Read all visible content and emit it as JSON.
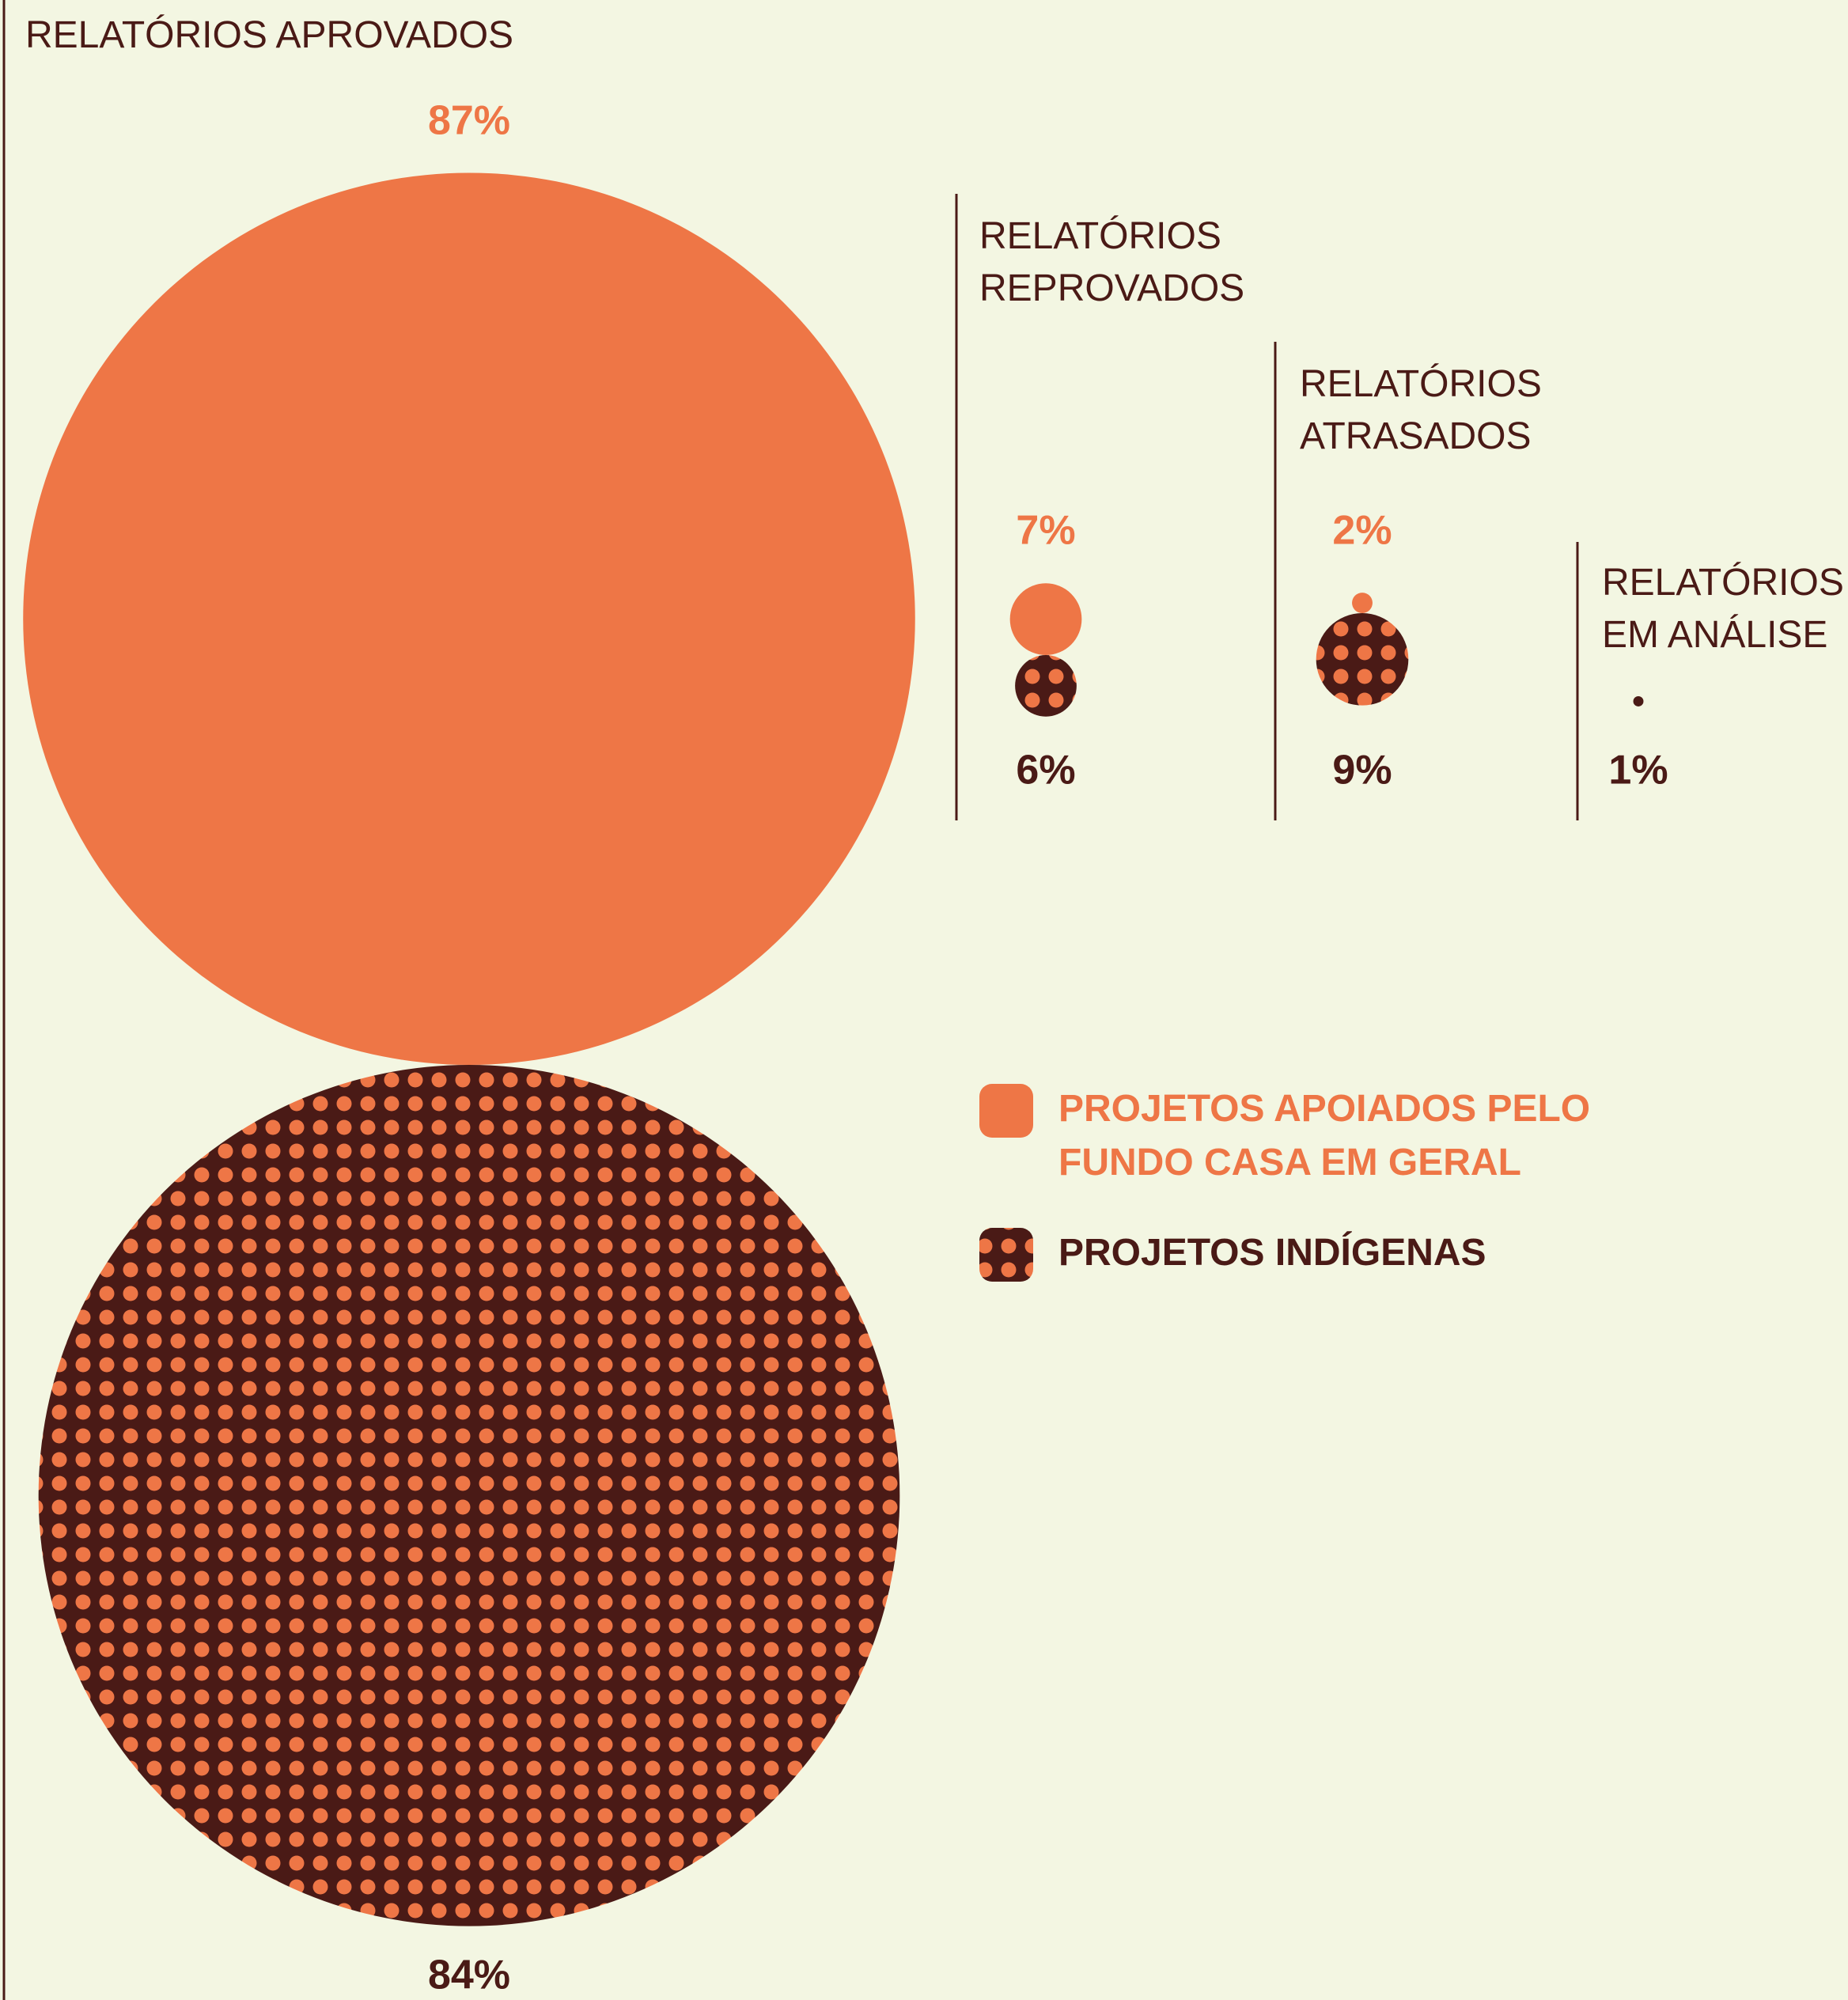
{
  "chart_data": {
    "type": "bubble",
    "categories": [
      "RELATÓRIOS APROVADOS",
      "RELATÓRIOS REPROVADOS",
      "RELATÓRIOS ATRASADOS",
      "RELATÓRIOS EM ANÁLISE"
    ],
    "series": [
      {
        "name": "PROJETOS APOIADOS PELO FUNDO CASA EM GERAL",
        "color": "#ee7646",
        "values": [
          87,
          7,
          2,
          null
        ],
        "value_labels": [
          "87%",
          "7%",
          "2%",
          null
        ]
      },
      {
        "name": "PROJETOS INDÍGENAS",
        "color": "#4a1a16",
        "values": [
          84,
          6,
          9,
          1
        ],
        "value_labels": [
          "84%",
          "6%",
          "9%",
          "1%"
        ]
      }
    ]
  }
}
